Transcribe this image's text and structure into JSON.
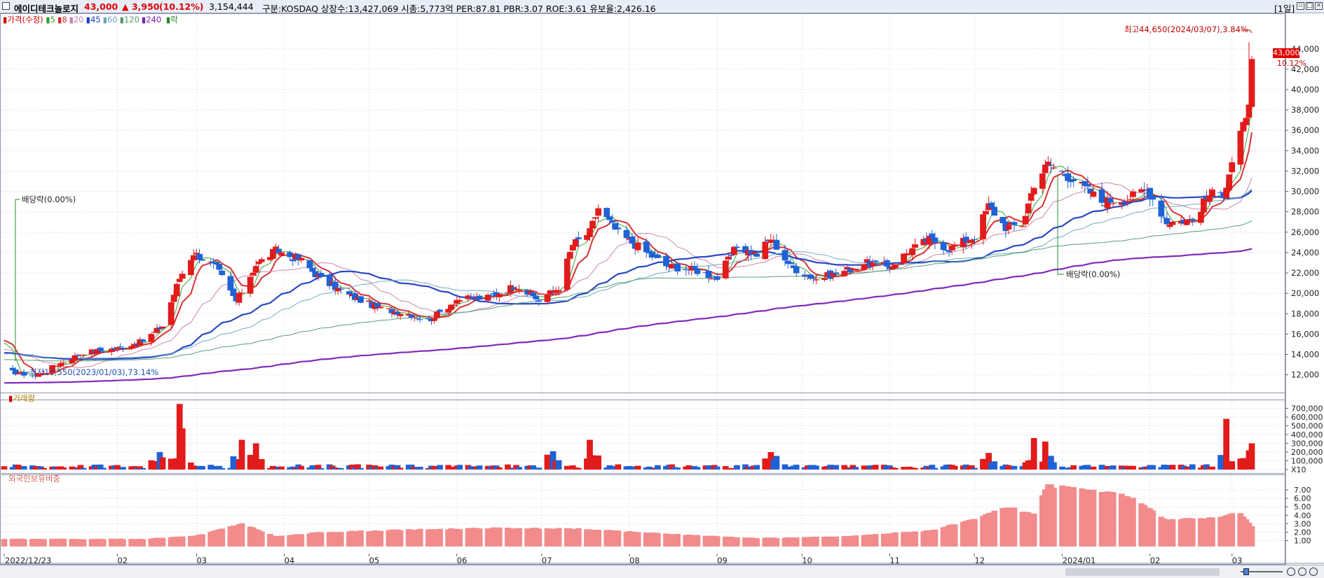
{
  "header": {
    "name": "에이디테크놀로지",
    "price": "43,000",
    "change": "▲ 3,950",
    "change_pct": "(10.12%)",
    "volume": "3,154,444",
    "stats": "구분:KOSDAQ  상장수:13,427,069  시총:5,773억  PER:87.81  PBR:3.07  ROE:3.61  유보율:2,426.16",
    "period": "[1일]"
  },
  "legend": {
    "price_label": "가격(수정)",
    "ma": [
      {
        "label": "5",
        "color": "#2ca02c"
      },
      {
        "label": "8",
        "color": "#d62728"
      },
      {
        "label": "20",
        "color": "#c77fae"
      },
      {
        "label": "45",
        "color": "#1f3fc2"
      },
      {
        "label": "60",
        "color": "#6aa6b8"
      },
      {
        "label": "120",
        "color": "#4f9a6b"
      },
      {
        "label": "240",
        "color": "#7a1fb8"
      }
    ],
    "rak": "락"
  },
  "annotations": {
    "high": "최고44,650(2024/03/07),3.84%",
    "low": "최저11,550(2023/01/03),73.14%",
    "div1": "배당락(0.00%)",
    "div2": "배당락(0.00%)",
    "price_tag": "43,000",
    "pct_tag": "10.12%"
  },
  "panels": {
    "volume_title": "거래량",
    "foreign_title": "외국인보유비중"
  },
  "chart_data": {
    "type": "candlestick",
    "period": "daily",
    "x_range": [
      "2022/12/23",
      "2024/03/08"
    ],
    "x_labels": [
      "2022/12/23",
      "02",
      "03",
      "04",
      "05",
      "06",
      "07",
      "08",
      "09",
      "10",
      "11",
      "12",
      "2024/01",
      "02",
      "03"
    ],
    "price_axis": {
      "ticks": [
        "12,000",
        "14,000",
        "16,000",
        "18,000",
        "20,000",
        "22,000",
        "24,000",
        "26,000",
        "28,000",
        "30,000",
        "32,000",
        "34,000",
        "36,000",
        "38,000",
        "40,000",
        "42,000",
        "44,000"
      ],
      "ylim": [
        10600,
        46800
      ]
    },
    "volume_axis": {
      "ticks": [
        "X10",
        "100,000",
        "200,000",
        "300,000",
        "400,000",
        "500,000",
        "600,000",
        "700,000"
      ],
      "ylim": [
        0,
        800000
      ]
    },
    "foreign_axis": {
      "ticks": [
        "1.00",
        "2.00",
        "3.00",
        "4.00",
        "5.00",
        "6.00",
        "7.00"
      ],
      "ylim": [
        0.3,
        8.0
      ]
    },
    "price_anchors": [
      [
        "2022/12/23",
        12400
      ],
      [
        "2023/01/03",
        11900
      ],
      [
        "2023/01/10",
        12900
      ],
      [
        "2023/01/20",
        14200
      ],
      [
        "2023/02/01",
        14600
      ],
      [
        "2023/02/10",
        15300
      ],
      [
        "2023/02/17",
        16800
      ],
      [
        "2023/02/23",
        21500
      ],
      [
        "2023/02/28",
        24000
      ],
      [
        "2023/03/08",
        22500
      ],
      [
        "2023/03/15",
        19200
      ],
      [
        "2023/03/22",
        22800
      ],
      [
        "2023/03/29",
        24200
      ],
      [
        "2023/04/07",
        23200
      ],
      [
        "2023/04/14",
        21400
      ],
      [
        "2023/04/24",
        19800
      ],
      [
        "2023/05/05",
        18500
      ],
      [
        "2023/05/15",
        18000
      ],
      [
        "2023/05/22",
        17300
      ],
      [
        "2023/06/01",
        19400
      ],
      [
        "2023/06/12",
        19600
      ],
      [
        "2023/06/22",
        20800
      ],
      [
        "2023/06/30",
        19300
      ],
      [
        "2023/07/07",
        20600
      ],
      [
        "2023/07/12",
        24800
      ],
      [
        "2023/07/18",
        26000
      ],
      [
        "2023/07/21",
        28400
      ],
      [
        "2023/07/28",
        25900
      ],
      [
        "2023/08/04",
        24600
      ],
      [
        "2023/08/14",
        22700
      ],
      [
        "2023/08/24",
        22300
      ],
      [
        "2023/09/01",
        21500
      ],
      [
        "2023/09/08",
        24600
      ],
      [
        "2023/09/15",
        23800
      ],
      [
        "2023/09/20",
        25400
      ],
      [
        "2023/09/27",
        22600
      ],
      [
        "2023/10/06",
        21400
      ],
      [
        "2023/10/16",
        22200
      ],
      [
        "2023/10/23",
        23000
      ],
      [
        "2023/11/01",
        22600
      ],
      [
        "2023/11/08",
        24200
      ],
      [
        "2023/11/15",
        25300
      ],
      [
        "2023/11/22",
        24400
      ],
      [
        "2023/12/01",
        25600
      ],
      [
        "2023/12/06",
        28600
      ],
      [
        "2023/12/12",
        26500
      ],
      [
        "2023/12/18",
        26800
      ],
      [
        "2023/12/22",
        30800
      ],
      [
        "2023/12/27",
        32700
      ],
      [
        "2024/01/05",
        31200
      ],
      [
        "2024/01/15",
        29000
      ],
      [
        "2024/01/24",
        29300
      ],
      [
        "2024/01/31",
        30200
      ],
      [
        "2024/02/07",
        27000
      ],
      [
        "2024/02/16",
        27200
      ],
      [
        "2024/02/22",
        29700
      ],
      [
        "2024/02/27",
        29800
      ],
      [
        "2024/03/01",
        33000
      ],
      [
        "2024/03/04",
        35800
      ],
      [
        "2024/03/06",
        36800
      ],
      [
        "2024/03/07",
        39050
      ],
      [
        "2024/03/08",
        43000
      ]
    ],
    "high": {
      "date": "2024/03/07",
      "value": 44650
    },
    "low": {
      "date": "2023/01/03",
      "value": 11550
    },
    "last_close": 43000,
    "dividend_dates": [
      "2022/12/28",
      "2023/12/27"
    ],
    "volume_spikes": [
      [
        "2023/02/16",
        200000
      ],
      [
        "2023/02/23",
        750000
      ],
      [
        "2023/02/24",
        470000
      ],
      [
        "2023/03/17",
        340000
      ],
      [
        "2023/03/22",
        300000
      ],
      [
        "2023/07/05",
        210000
      ],
      [
        "2023/07/18",
        340000
      ],
      [
        "2023/09/20",
        200000
      ],
      [
        "2023/12/06",
        190000
      ],
      [
        "2023/12/22",
        360000
      ],
      [
        "2023/12/26",
        320000
      ],
      [
        "2024/02/28",
        580000
      ],
      [
        "2024/03/07",
        220000
      ],
      [
        "2024/03/08",
        300000
      ]
    ],
    "foreign_anchors": [
      [
        "2022/12/23",
        1.2
      ],
      [
        "2023/02/10",
        1.2
      ],
      [
        "2023/03/01",
        1.6
      ],
      [
        "2023/03/17",
        3.0
      ],
      [
        "2023/03/29",
        1.5
      ],
      [
        "2023/04/14",
        2.0
      ],
      [
        "2023/05/15",
        2.3
      ],
      [
        "2023/06/15",
        2.5
      ],
      [
        "2023/07/14",
        2.4
      ],
      [
        "2023/08/15",
        1.8
      ],
      [
        "2023/09/15",
        1.3
      ],
      [
        "2023/10/16",
        1.5
      ],
      [
        "2023/11/15",
        2.2
      ],
      [
        "2023/12/01",
        3.5
      ],
      [
        "2023/12/12",
        5.0
      ],
      [
        "2023/12/22",
        4.2
      ],
      [
        "2023/12/27",
        7.5
      ],
      [
        "2024/01/10",
        7.0
      ],
      [
        "2024/01/24",
        6.3
      ],
      [
        "2024/02/07",
        3.5
      ],
      [
        "2024/02/22",
        3.7
      ],
      [
        "2024/03/04",
        4.3
      ],
      [
        "2024/03/08",
        2.7
      ]
    ]
  }
}
